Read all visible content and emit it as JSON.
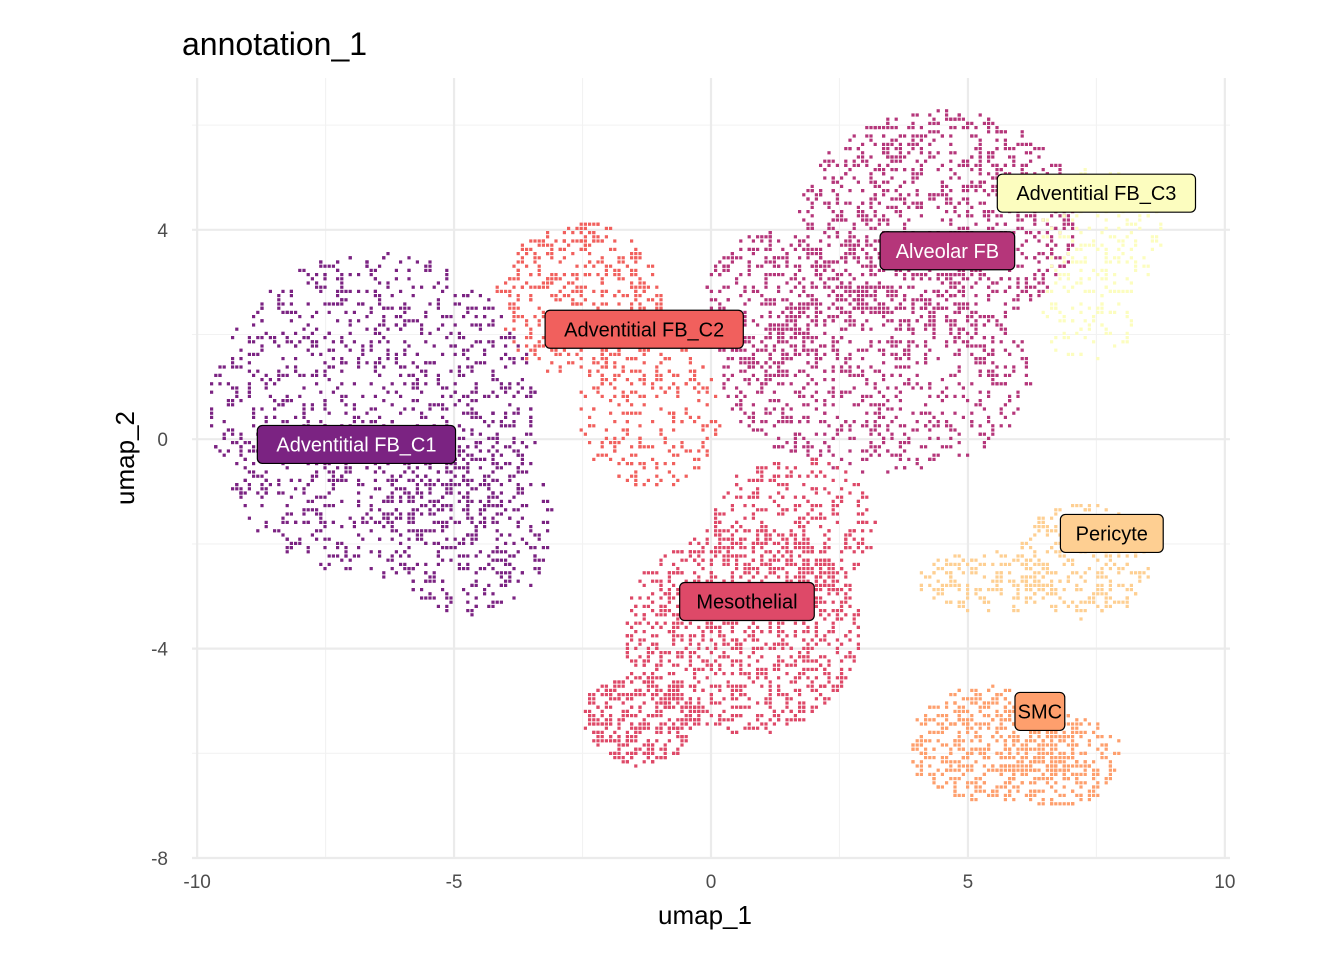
{
  "chart_data": {
    "type": "scatter",
    "title": "annotation_1",
    "xlabel": "umap_1",
    "ylabel": "umap_2",
    "xlim": [
      -10.1,
      10.1
    ],
    "ylim": [
      -8.0,
      6.9
    ],
    "x_ticks": [
      -10,
      -5,
      0,
      5,
      10
    ],
    "x_tick_labels": [
      "-10",
      "-5",
      "0",
      "5",
      "10"
    ],
    "y_ticks": [
      -8,
      -4,
      0,
      4
    ],
    "y_tick_labels": [
      "-8",
      "-4",
      "0",
      "4"
    ],
    "grid": true,
    "legend": "none",
    "clusters": [
      {
        "name": "Adventitial FB_C1",
        "color": "#7b2382",
        "text_color": "#ffffff",
        "label_pos": [
          -6.9,
          -0.1
        ],
        "n_points": 1500,
        "blobs": [
          {
            "cx": -6.6,
            "cy": 0.5,
            "rx": 3.2,
            "ry": 3.1,
            "w": 3
          },
          {
            "cx": -4.8,
            "cy": -1.6,
            "rx": 1.7,
            "ry": 1.7,
            "w": 1
          }
        ]
      },
      {
        "name": "Adventitial FB_C2",
        "color": "#f1605d",
        "text_color": "#000000",
        "label_pos": [
          -1.3,
          2.1
        ],
        "n_points": 700,
        "blobs": [
          {
            "cx": -2.6,
            "cy": 2.7,
            "rx": 1.6,
            "ry": 1.5,
            "w": 2
          },
          {
            "cx": -1.2,
            "cy": 0.6,
            "rx": 1.4,
            "ry": 1.5,
            "w": 1
          }
        ]
      },
      {
        "name": "Alveolar FB",
        "color": "#b5367a",
        "text_color": "#ffffff",
        "label_pos": [
          4.6,
          3.6
        ],
        "n_points": 2200,
        "blobs": [
          {
            "cx": 4.4,
            "cy": 4.2,
            "rx": 2.7,
            "ry": 2.1,
            "w": 3
          },
          {
            "cx": 3.2,
            "cy": 1.2,
            "rx": 3.0,
            "ry": 1.8,
            "w": 2
          },
          {
            "cx": 1.2,
            "cy": 2.6,
            "rx": 1.4,
            "ry": 1.4,
            "w": 1
          }
        ]
      },
      {
        "name": "Adventitial FB_C3",
        "color": "#fcfdbf",
        "text_color": "#000000",
        "label_pos": [
          7.5,
          4.7
        ],
        "n_points": 260,
        "blobs": [
          {
            "cx": 7.6,
            "cy": 4.0,
            "rx": 1.2,
            "ry": 1.3,
            "w": 2
          },
          {
            "cx": 7.3,
            "cy": 2.4,
            "rx": 0.9,
            "ry": 0.9,
            "w": 1
          }
        ]
      },
      {
        "name": "Mesothelial",
        "color": "#de4968",
        "text_color": "#000000",
        "label_pos": [
          0.7,
          -3.1
        ],
        "n_points": 1700,
        "blobs": [
          {
            "cx": 0.6,
            "cy": -3.6,
            "rx": 2.3,
            "ry": 2.0,
            "w": 3
          },
          {
            "cx": -1.4,
            "cy": -5.3,
            "rx": 1.1,
            "ry": 0.9,
            "w": 1
          },
          {
            "cx": 1.6,
            "cy": -1.6,
            "rx": 1.6,
            "ry": 1.3,
            "w": 1
          }
        ]
      },
      {
        "name": "Pericyte",
        "color": "#fecf92",
        "text_color": "#000000",
        "label_pos": [
          7.8,
          -1.8
        ],
        "n_points": 420,
        "blobs": [
          {
            "cx": 7.2,
            "cy": -2.3,
            "rx": 1.3,
            "ry": 1.1,
            "w": 2
          },
          {
            "cx": 5.3,
            "cy": -2.7,
            "rx": 1.3,
            "ry": 0.6,
            "w": 1
          }
        ]
      },
      {
        "name": "SMC",
        "color": "#fe9f6d",
        "text_color": "#000000",
        "label_pos": [
          6.4,
          -5.2
        ],
        "n_points": 750,
        "blobs": [
          {
            "cx": 5.4,
            "cy": -5.8,
            "rx": 1.6,
            "ry": 1.1,
            "w": 2
          },
          {
            "cx": 6.8,
            "cy": -6.1,
            "rx": 1.2,
            "ry": 0.9,
            "w": 1
          }
        ]
      }
    ]
  }
}
